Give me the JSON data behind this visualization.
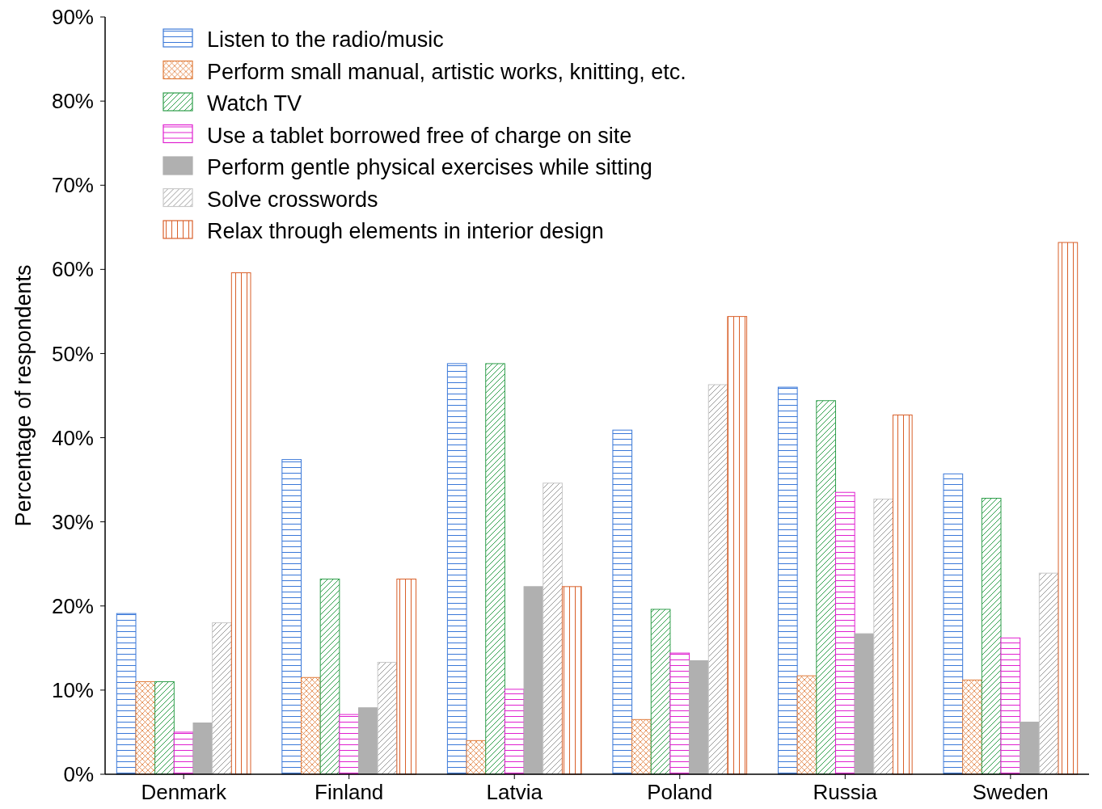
{
  "chart_data": {
    "type": "bar",
    "ylabel": "Percentage of respondents",
    "categories": [
      "Denmark",
      "Finland",
      "Latvia",
      "Poland",
      "Russia",
      "Sweden"
    ],
    "series": [
      {
        "name": "Listen to the radio/music",
        "color": "#3a78d8",
        "values": [
          19.1,
          37.4,
          48.8,
          40.9,
          46.0,
          35.7
        ]
      },
      {
        "name": "Perform small manual, artistic works, knitting, etc.",
        "color": "#e07b39",
        "values": [
          11.0,
          11.5,
          4.0,
          6.5,
          11.7,
          11.2
        ]
      },
      {
        "name": "Watch TV",
        "color": "#2e9e4a",
        "values": [
          11.0,
          23.2,
          48.8,
          19.6,
          44.4,
          32.8
        ]
      },
      {
        "name": "Use a tablet borrowed free of charge on site",
        "color": "#e020d0",
        "values": [
          5.0,
          7.1,
          10.1,
          14.4,
          33.5,
          16.2
        ]
      },
      {
        "name": "Perform gentle physical exercises while sitting",
        "color": "#b0b0b0",
        "values": [
          6.1,
          7.9,
          22.3,
          13.5,
          16.7,
          6.2
        ]
      },
      {
        "name": "Solve crosswords",
        "color": "#c8c8c8",
        "values": [
          18.0,
          13.3,
          34.6,
          46.3,
          32.7,
          23.9
        ]
      },
      {
        "name": "Relax through elements in interior design",
        "color": "#d9602a",
        "values": [
          59.6,
          23.2,
          22.3,
          54.4,
          42.7,
          63.2
        ]
      }
    ],
    "ylim": [
      0,
      90
    ],
    "yticks": [
      {
        "value": 0,
        "label": "0%"
      },
      {
        "value": 10,
        "label": "10%"
      },
      {
        "value": 20,
        "label": "20%"
      },
      {
        "value": 30,
        "label": "30%"
      },
      {
        "value": 40,
        "label": "40%"
      },
      {
        "value": 50,
        "label": "50%"
      },
      {
        "value": 60,
        "label": "60%"
      },
      {
        "value": 70,
        "label": "70%"
      },
      {
        "value": 80,
        "label": "80%"
      },
      {
        "value": 90,
        "label": "90%"
      }
    ],
    "grid": false,
    "legend": "top left"
  }
}
